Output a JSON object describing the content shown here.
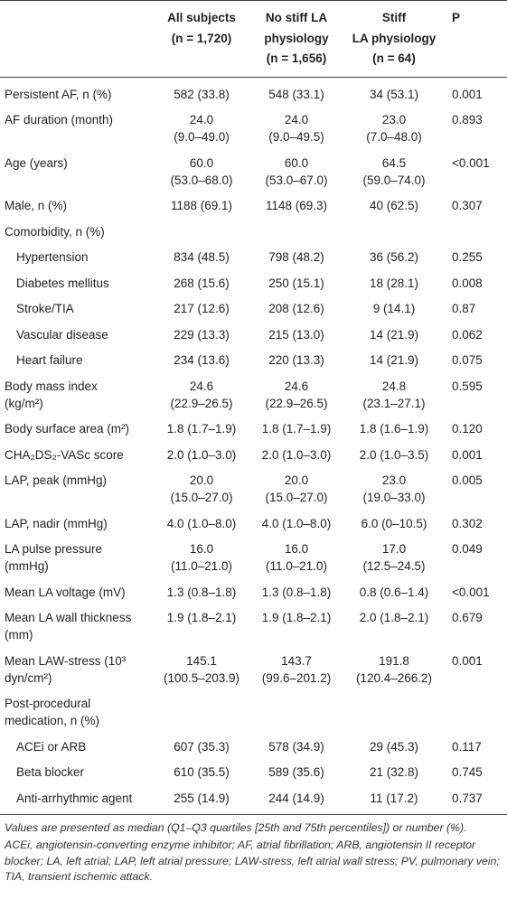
{
  "table": {
    "columns": [
      [
        "All subjects",
        "(n = 1,720)"
      ],
      [
        "No stiff LA",
        "physiology",
        "(n = 1,656)"
      ],
      [
        "Stiff",
        "LA physiology",
        "(n = 64)"
      ],
      [
        "P"
      ]
    ],
    "rows": [
      {
        "label": [
          "Persistent AF, n (%)"
        ],
        "cells": [
          [
            "582 (33.8)"
          ],
          [
            "548 (33.1)"
          ],
          [
            "34 (53.1)"
          ],
          [
            "0.001"
          ]
        ]
      },
      {
        "label": [
          "AF duration (month)"
        ],
        "cells": [
          [
            "24.0",
            "(9.0–49.0)"
          ],
          [
            "24.0",
            "(9.0–49.5)"
          ],
          [
            "23.0",
            "(7.0–48.0)"
          ],
          [
            "0.893"
          ]
        ]
      },
      {
        "label": [
          "Age (years)"
        ],
        "cells": [
          [
            "60.0",
            "(53.0–68.0)"
          ],
          [
            "60.0",
            "(53.0–67.0)"
          ],
          [
            "64.5",
            "(59.0–74.0)"
          ],
          [
            "<0.001"
          ]
        ]
      },
      {
        "label": [
          "Male, n (%)"
        ],
        "cells": [
          [
            "1188 (69.1)"
          ],
          [
            "1148 (69.3)"
          ],
          [
            "40 (62.5)"
          ],
          [
            "0.307"
          ]
        ]
      },
      {
        "label": [
          "Comorbidity, n (%)"
        ],
        "subrows": [
          {
            "label": [
              "Hypertension"
            ],
            "cells": [
              [
                "834 (48.5)"
              ],
              [
                "798 (48.2)"
              ],
              [
                "36 (56.2)"
              ],
              [
                "0.255"
              ]
            ]
          },
          {
            "label": [
              "Diabetes mellitus"
            ],
            "cells": [
              [
                "268 (15.6)"
              ],
              [
                "250 (15.1)"
              ],
              [
                "18 (28.1)"
              ],
              [
                "0.008"
              ]
            ]
          },
          {
            "label": [
              "Stroke/TIA"
            ],
            "cells": [
              [
                "217 (12.6)"
              ],
              [
                "208 (12.6)"
              ],
              [
                "9 (14.1)"
              ],
              [
                "0.87"
              ]
            ]
          },
          {
            "label": [
              "Vascular disease"
            ],
            "cells": [
              [
                "229 (13.3)"
              ],
              [
                "215 (13.0)"
              ],
              [
                "14 (21.9)"
              ],
              [
                "0.062"
              ]
            ]
          },
          {
            "label": [
              "Heart failure"
            ],
            "cells": [
              [
                "234 (13.6)"
              ],
              [
                "220 (13.3)"
              ],
              [
                "14 (21.9)"
              ],
              [
                "0.075"
              ]
            ]
          }
        ]
      },
      {
        "label": [
          "Body mass index",
          "(kg/m²)"
        ],
        "cells": [
          [
            "24.6",
            "(22.9–26.5)"
          ],
          [
            "24.6",
            "(22.9–26.5)"
          ],
          [
            "24.8",
            "(23.1–27.1)"
          ],
          [
            "0.595"
          ]
        ]
      },
      {
        "label": [
          "Body surface area (m²)"
        ],
        "cells": [
          [
            "1.8 (1.7–1.9)"
          ],
          [
            "1.8 (1.7–1.9)"
          ],
          [
            "1.8 (1.6–1.9)"
          ],
          [
            "0.120"
          ]
        ]
      },
      {
        "label": [
          "CHA₂DS₂-VASc score"
        ],
        "cells": [
          [
            "2.0 (1.0–3.0)"
          ],
          [
            "2.0 (1.0–3.0)"
          ],
          [
            "2.0 (1.0–3.5)"
          ],
          [
            "0.001"
          ]
        ]
      },
      {
        "label": [
          "LAP, peak (mmHg)"
        ],
        "cells": [
          [
            "20.0",
            "(15.0–27.0)"
          ],
          [
            "20.0",
            "(15.0–27.0)"
          ],
          [
            "23.0",
            "(19.0–33.0)"
          ],
          [
            "0.005"
          ]
        ]
      },
      {
        "label": [
          "LAP, nadir (mmHg)"
        ],
        "cells": [
          [
            "4.0 (1.0–8.0)"
          ],
          [
            "4.0 (1.0–8.0)"
          ],
          [
            "6.0 (0–10.5)"
          ],
          [
            "0.302"
          ]
        ]
      },
      {
        "label": [
          "LA pulse pressure",
          "(mmHg)"
        ],
        "cells": [
          [
            "16.0",
            "(11.0–21.0)"
          ],
          [
            "16.0",
            "(11.0–21.0)"
          ],
          [
            "17.0",
            "(12.5–24.5)"
          ],
          [
            "0.049"
          ]
        ]
      },
      {
        "label": [
          "Mean LA voltage (mV)"
        ],
        "cells": [
          [
            "1.3 (0.8–1.8)"
          ],
          [
            "1.3 (0.8–1.8)"
          ],
          [
            "0.8 (0.6–1.4)"
          ],
          [
            "<0.001"
          ]
        ]
      },
      {
        "label": [
          "Mean LA wall thickness",
          "(mm)"
        ],
        "cells": [
          [
            "1.9 (1.8–2.1)"
          ],
          [
            "1.9 (1.8–2.1)"
          ],
          [
            "2.0 (1.8–2.1)"
          ],
          [
            "0.679"
          ]
        ]
      },
      {
        "label": [
          "Mean LAW-stress (10³",
          "dyn/cm²)"
        ],
        "cells": [
          [
            "145.1",
            "(100.5–203.9)"
          ],
          [
            "143.7",
            "(99.6–201.2)"
          ],
          [
            "191.8",
            "(120.4–266.2)"
          ],
          [
            "0.001"
          ]
        ]
      },
      {
        "label": [
          "Post-procedural",
          "medication, n (%)"
        ],
        "subrows": [
          {
            "label": [
              "ACEi or ARB"
            ],
            "cells": [
              [
                "607 (35.3)"
              ],
              [
                "578 (34.9)"
              ],
              [
                "29 (45.3)"
              ],
              [
                "0.117"
              ]
            ]
          },
          {
            "label": [
              "Beta blocker"
            ],
            "cells": [
              [
                "610 (35.5)"
              ],
              [
                "589 (35.6)"
              ],
              [
                "21 (32.8)"
              ],
              [
                "0.745"
              ]
            ]
          },
          {
            "label": [
              "Anti-arrhythmic agent"
            ],
            "cells": [
              [
                "255 (14.9)"
              ],
              [
                "244 (14.9)"
              ],
              [
                "11 (17.2)"
              ],
              [
                "0.737"
              ]
            ]
          }
        ]
      }
    ],
    "notes": [
      "Values are presented as median (Q1–Q3 quartiles [25th and 75th percentiles]) or number (%).",
      "ACEi, angiotensin-converting enzyme inhibitor; AF, atrial fibrillation; ARB, angiotensin II receptor blocker; LA, left atrial; LAP, left atrial pressure; LAW-stress, left atrial wall stress; PV, pulmonary vein; TIA, transient ischemic attack."
    ]
  }
}
